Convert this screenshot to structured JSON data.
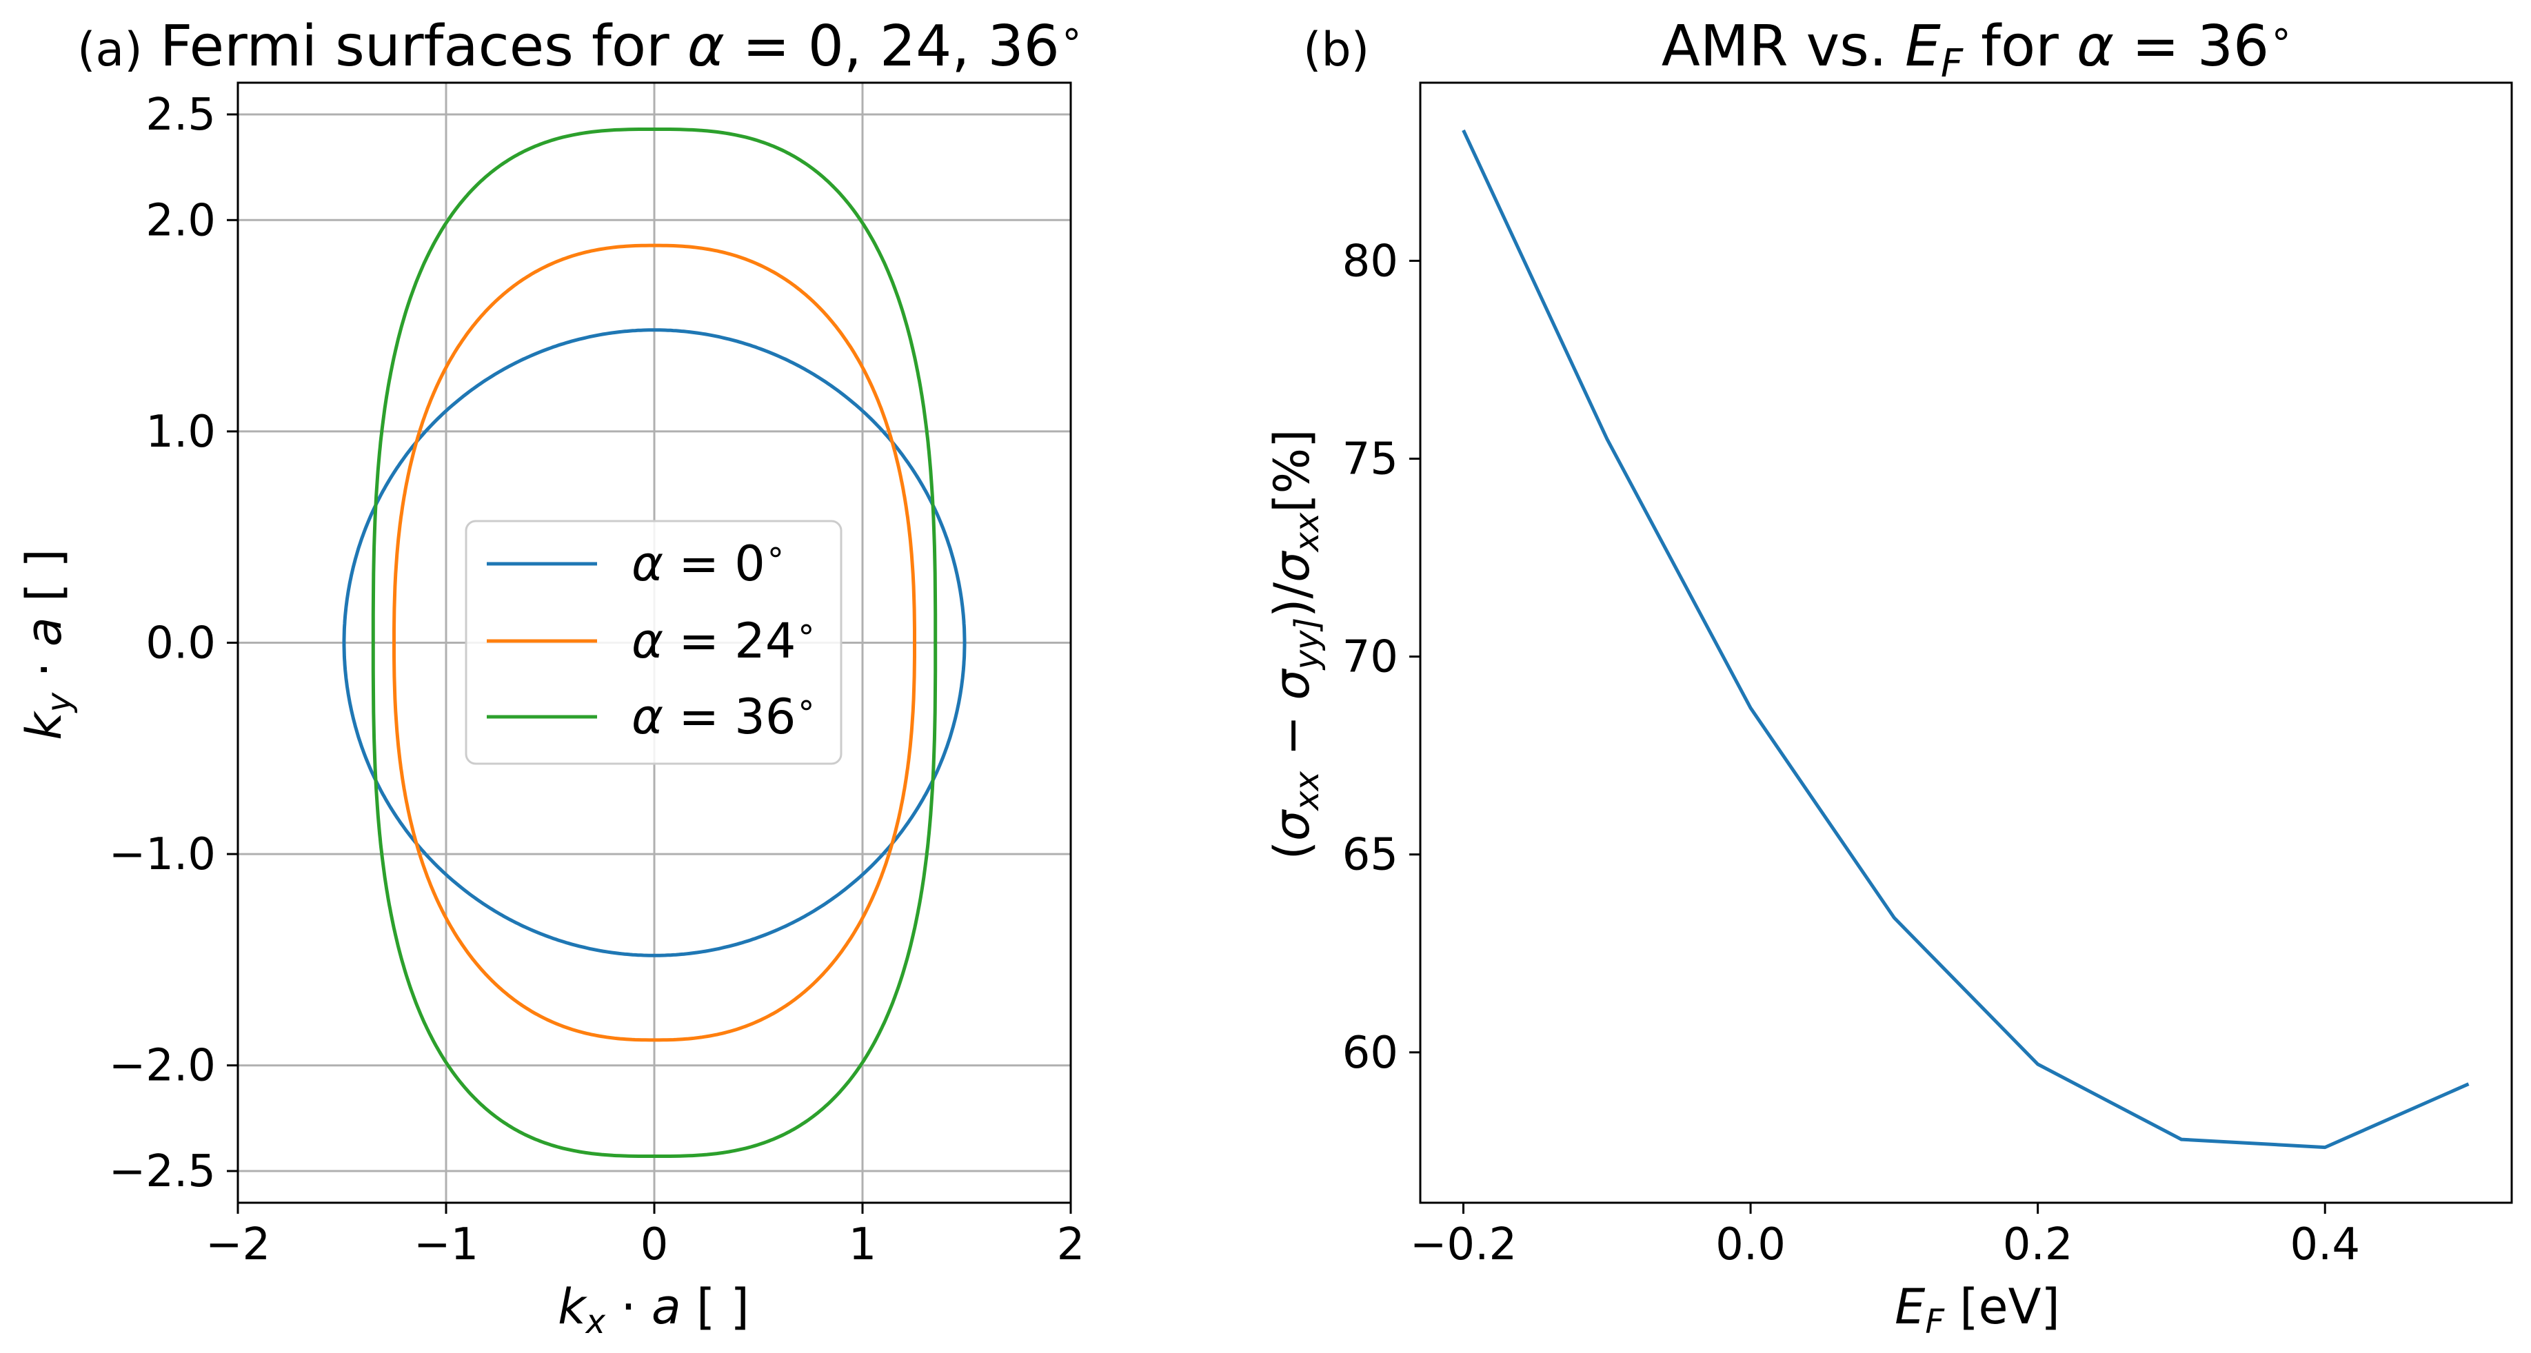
{
  "chart_data": [
    {
      "type": "line",
      "panel_label": "(a)",
      "title": "Fermi surfaces for α = 0, 24, 36°",
      "xlabel": "kx · a [ ]",
      "ylabel": "ky · a [ ]",
      "xlim": [
        -2,
        2
      ],
      "ylim": [
        -2.65,
        2.65
      ],
      "xticks": [
        -2,
        -1,
        0,
        1,
        2
      ],
      "xtick_labels": [
        "−2",
        "−1",
        "0",
        "1",
        "2"
      ],
      "yticks": [
        -2.5,
        -2.0,
        -1.0,
        0.0,
        1.0,
        2.0,
        2.5
      ],
      "ytick_labels": [
        "−2.5",
        "−2.0",
        "−1.0",
        "0.0",
        "1.0",
        "2.0",
        "2.5"
      ],
      "grid": true,
      "legend_position": "center",
      "series": [
        {
          "name": "α = 0°",
          "color": "#1f77b4",
          "shape": "ellipse",
          "semi_x": 1.49,
          "semi_y": 1.48,
          "exponent": 2.0
        },
        {
          "name": "α = 24°",
          "color": "#ff7f0e",
          "shape": "ellipse",
          "semi_x": 1.25,
          "semi_y": 1.88,
          "exponent": 2.4
        },
        {
          "name": "α = 36°",
          "color": "#2ca02c",
          "shape": "ellipse",
          "semi_x": 1.35,
          "semi_y": 2.43,
          "exponent": 2.8
        }
      ]
    },
    {
      "type": "line",
      "panel_label": "(b)",
      "title": "AMR vs. EF for α = 36°",
      "xlabel": "EF [eV]",
      "ylabel": "(σxx − σyy)/σxx [%]",
      "xlim": [
        -0.23,
        0.53
      ],
      "ylim": [
        56.2,
        84.5
      ],
      "xticks": [
        -0.2,
        0.0,
        0.2,
        0.4
      ],
      "xtick_labels": [
        "−0.2",
        "0.0",
        "0.2",
        "0.4"
      ],
      "yticks": [
        60,
        65,
        70,
        75,
        80
      ],
      "ytick_labels": [
        "60",
        "65",
        "70",
        "75",
        "80"
      ],
      "grid": false,
      "series": [
        {
          "color": "#1f77b4",
          "x": [
            -0.2,
            -0.1,
            0.0,
            0.1,
            0.2,
            0.3,
            0.4,
            0.5
          ],
          "y": [
            83.3,
            75.5,
            68.7,
            63.4,
            59.7,
            57.8,
            57.6,
            59.2
          ]
        }
      ]
    }
  ]
}
